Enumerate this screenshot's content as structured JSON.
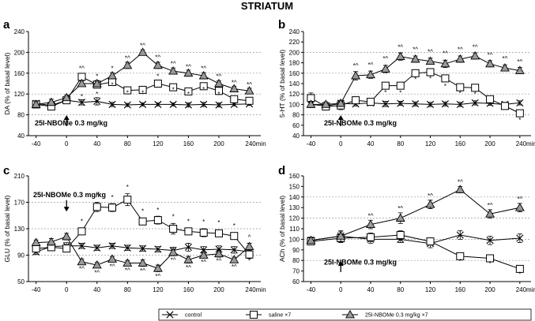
{
  "figure_title": "STRIATUM",
  "legend": [
    {
      "key": "control",
      "label": "control",
      "marker": "x-icon"
    },
    {
      "key": "saline",
      "label": "saline ×7",
      "marker": "square-icon"
    },
    {
      "key": "nbome",
      "label": "25I-NBOMe 0.3 mg/kg ×7",
      "marker": "triangle-icon"
    }
  ],
  "colors": {
    "grid": "#999999",
    "triangle_fill": "#9a9a9a",
    "square_fill": "#ffffff",
    "line": "#000000"
  },
  "chart_data": [
    {
      "panel": "a",
      "type": "line",
      "ylabel": "DA (% of basal level)",
      "x_unit": "240min",
      "annotation": "25I-NBOMe 0.3 mg/kg",
      "x_ticks": [
        -40,
        0,
        40,
        80,
        120,
        160,
        200,
        240
      ],
      "y_ticks": [
        40,
        80,
        120,
        160,
        200,
        240
      ],
      "ylim": [
        40,
        240
      ],
      "xlim": [
        -50,
        255
      ],
      "gridlines": [
        80,
        120,
        160,
        200
      ],
      "injection_x": 0,
      "x": [
        -40,
        -20,
        0,
        20,
        40,
        60,
        80,
        100,
        120,
        140,
        160,
        180,
        200,
        220,
        240
      ],
      "series": [
        {
          "key": "control",
          "values": [
            102,
            98,
            108,
            104,
            106,
            100,
            99,
            100,
            100,
            100,
            99,
            100,
            99,
            100,
            101
          ],
          "err": [
            5,
            5,
            6,
            5,
            7,
            4,
            3,
            3,
            3,
            3,
            4,
            4,
            4,
            3,
            3
          ]
        },
        {
          "key": "saline",
          "values": [
            100,
            96,
            108,
            153,
            138,
            143,
            127,
            128,
            140,
            133,
            125,
            135,
            126,
            110,
            107
          ],
          "err": [
            4,
            6,
            5,
            4,
            6,
            5,
            4,
            4,
            5,
            6,
            5,
            6,
            7,
            5,
            4
          ]
        },
        {
          "key": "nbome",
          "values": [
            100,
            104,
            113,
            140,
            140,
            155,
            175,
            200,
            175,
            164,
            160,
            155,
            140,
            130,
            126
          ],
          "err": [
            5,
            6,
            5,
            5,
            6,
            6,
            6,
            5,
            6,
            6,
            6,
            6,
            5,
            5,
            5
          ]
        }
      ],
      "significance": [
        {
          "x": 20,
          "y": 165,
          "text": "*^"
        },
        {
          "x": 20,
          "y": 111,
          "text": "*"
        },
        {
          "x": 40,
          "y": 150,
          "text": "*"
        },
        {
          "x": 40,
          "y": 116,
          "text": "*"
        },
        {
          "x": 60,
          "y": 165,
          "text": "*"
        },
        {
          "x": 60,
          "y": 133,
          "text": "*"
        },
        {
          "x": 80,
          "y": 185,
          "text": "*^"
        },
        {
          "x": 80,
          "y": 118,
          "text": "*"
        },
        {
          "x": 100,
          "y": 209,
          "text": "*^"
        },
        {
          "x": 100,
          "y": 118,
          "text": "*"
        },
        {
          "x": 120,
          "y": 186,
          "text": "*^"
        },
        {
          "x": 120,
          "y": 150,
          "text": "*"
        },
        {
          "x": 140,
          "y": 174,
          "text": "*^"
        },
        {
          "x": 140,
          "y": 124,
          "text": "*"
        },
        {
          "x": 160,
          "y": 168,
          "text": "*^"
        },
        {
          "x": 160,
          "y": 116,
          "text": "*"
        },
        {
          "x": 180,
          "y": 165,
          "text": "*^"
        },
        {
          "x": 180,
          "y": 125,
          "text": "*"
        },
        {
          "x": 200,
          "y": 150,
          "text": "*^"
        },
        {
          "x": 200,
          "y": 116,
          "text": "*"
        },
        {
          "x": 220,
          "y": 138,
          "text": "*^"
        },
        {
          "x": 240,
          "y": 134,
          "text": "*^"
        }
      ]
    },
    {
      "panel": "b",
      "type": "line",
      "ylabel": "5-HT (% of basal level)",
      "x_unit": "240min",
      "annotation": "25I-NBOMe 0.3 mg/kg",
      "x_ticks": [
        -40,
        0,
        40,
        80,
        120,
        160,
        200,
        240
      ],
      "y_ticks": [
        40,
        60,
        80,
        100,
        120,
        140,
        160,
        180,
        200,
        220,
        240
      ],
      "ylim": [
        40,
        240
      ],
      "xlim": [
        -50,
        255
      ],
      "gridlines": [
        80,
        120,
        160,
        200
      ],
      "injection_x": 0,
      "x": [
        -40,
        -20,
        0,
        20,
        40,
        60,
        80,
        100,
        120,
        140,
        160,
        180,
        200,
        220,
        240
      ],
      "series": [
        {
          "key": "control",
          "values": [
            100,
            97,
            102,
            101,
            103,
            101,
            102,
            101,
            100,
            101,
            100,
            103,
            102,
            100,
            103
          ],
          "err": [
            6,
            5,
            6,
            4,
            5,
            5,
            4,
            4,
            4,
            4,
            4,
            4,
            4,
            4,
            4
          ]
        },
        {
          "key": "saline",
          "values": [
            112,
            96,
            98,
            108,
            105,
            136,
            136,
            160,
            162,
            150,
            133,
            132,
            110,
            97,
            83
          ],
          "err": [
            10,
            6,
            8,
            6,
            5,
            5,
            5,
            5,
            5,
            6,
            5,
            5,
            5,
            4,
            4
          ]
        },
        {
          "key": "nbome",
          "values": [
            100,
            100,
            102,
            155,
            157,
            168,
            192,
            187,
            183,
            178,
            187,
            193,
            178,
            170,
            165
          ],
          "err": [
            6,
            5,
            6,
            8,
            7,
            7,
            7,
            6,
            6,
            7,
            6,
            6,
            6,
            6,
            6
          ]
        }
      ],
      "significance": [
        {
          "x": 20,
          "y": 170,
          "text": "*^"
        },
        {
          "x": 40,
          "y": 172,
          "text": "*^"
        },
        {
          "x": 60,
          "y": 184,
          "text": "*^"
        },
        {
          "x": 80,
          "y": 206,
          "text": "*^"
        },
        {
          "x": 100,
          "y": 201,
          "text": "*^"
        },
        {
          "x": 120,
          "y": 197,
          "text": "*^"
        },
        {
          "x": 140,
          "y": 194,
          "text": "*^"
        },
        {
          "x": 160,
          "y": 201,
          "text": "*^"
        },
        {
          "x": 180,
          "y": 206,
          "text": "*^"
        },
        {
          "x": 200,
          "y": 191,
          "text": "*^"
        },
        {
          "x": 220,
          "y": 184,
          "text": "*^"
        },
        {
          "x": 240,
          "y": 178,
          "text": "*^"
        },
        {
          "x": 60,
          "y": 119,
          "text": "*"
        },
        {
          "x": 80,
          "y": 118,
          "text": "*"
        },
        {
          "x": 100,
          "y": 144,
          "text": "*"
        },
        {
          "x": 120,
          "y": 145,
          "text": "*"
        },
        {
          "x": 140,
          "y": 131,
          "text": "*"
        },
        {
          "x": 160,
          "y": 117,
          "text": "*"
        },
        {
          "x": 180,
          "y": 116,
          "text": "*"
        },
        {
          "x": 240,
          "y": 66,
          "text": "*"
        }
      ]
    },
    {
      "panel": "c",
      "type": "line",
      "ylabel": "GLU (% of basal level)",
      "x_unit": "240min",
      "annotation": "25I-NBOMe 0.3 mg/kg",
      "x_ticks": [
        -40,
        0,
        40,
        80,
        120,
        160,
        200,
        240
      ],
      "y_ticks": [
        50,
        90,
        130,
        170,
        210
      ],
      "ylim": [
        50,
        210
      ],
      "xlim": [
        -50,
        255
      ],
      "gridlines": [
        90,
        130,
        170
      ],
      "injection_x": 0,
      "x": [
        -40,
        -20,
        0,
        20,
        40,
        60,
        80,
        100,
        120,
        140,
        160,
        180,
        200,
        220,
        240
      ],
      "series": [
        {
          "key": "control",
          "values": [
            95,
            103,
            104,
            104,
            101,
            104,
            101,
            100,
            99,
            97,
            102,
            98,
            99,
            98,
            95
          ],
          "err": [
            4,
            4,
            5,
            4,
            4,
            4,
            4,
            4,
            4,
            5,
            6,
            5,
            5,
            5,
            5
          ]
        },
        {
          "key": "saline",
          "values": [
            100,
            102,
            100,
            126,
            163,
            162,
            174,
            141,
            143,
            130,
            126,
            124,
            123,
            119,
            91
          ],
          "err": [
            4,
            4,
            5,
            5,
            7,
            6,
            9,
            5,
            6,
            8,
            5,
            6,
            5,
            5,
            6
          ]
        },
        {
          "key": "nbome",
          "values": [
            109,
            110,
            118,
            80,
            75,
            84,
            78,
            78,
            70,
            94,
            83,
            90,
            92,
            83,
            103
          ],
          "err": [
            4,
            5,
            5,
            4,
            4,
            4,
            4,
            5,
            5,
            5,
            5,
            4,
            5,
            4,
            5
          ]
        }
      ],
      "significance": [
        {
          "x": 20,
          "y": 138,
          "text": "*"
        },
        {
          "x": 40,
          "y": 177,
          "text": "*"
        },
        {
          "x": 60,
          "y": 174,
          "text": "*"
        },
        {
          "x": 80,
          "y": 190,
          "text": "*"
        },
        {
          "x": 100,
          "y": 153,
          "text": "*"
        },
        {
          "x": 120,
          "y": 155,
          "text": "*"
        },
        {
          "x": 140,
          "y": 145,
          "text": "*"
        },
        {
          "x": 160,
          "y": 138,
          "text": "*"
        },
        {
          "x": 180,
          "y": 137,
          "text": "*"
        },
        {
          "x": 200,
          "y": 136,
          "text": "*"
        },
        {
          "x": 220,
          "y": 131,
          "text": "*"
        },
        {
          "x": 240,
          "y": 114,
          "text": "^"
        },
        {
          "x": 20,
          "y": 66,
          "text": "*^"
        },
        {
          "x": 40,
          "y": 60,
          "text": "*^"
        },
        {
          "x": 60,
          "y": 70,
          "text": "*^"
        },
        {
          "x": 80,
          "y": 64,
          "text": "*^"
        },
        {
          "x": 100,
          "y": 63,
          "text": "*^"
        },
        {
          "x": 120,
          "y": 55,
          "text": "*^"
        },
        {
          "x": 140,
          "y": 79,
          "text": "*^"
        },
        {
          "x": 160,
          "y": 68,
          "text": "*^"
        },
        {
          "x": 180,
          "y": 76,
          "text": "*^"
        },
        {
          "x": 200,
          "y": 78,
          "text": "*^"
        },
        {
          "x": 220,
          "y": 69,
          "text": "*^"
        },
        {
          "x": 240,
          "y": 78,
          "text": "*"
        }
      ]
    },
    {
      "panel": "d",
      "type": "line",
      "ylabel": "ACh (% of basal level)",
      "x_unit": "240min",
      "annotation": "25I-NBOMe 0.3 mg/kg",
      "x_ticks": [
        -40,
        0,
        40,
        80,
        120,
        160,
        200,
        240
      ],
      "y_ticks": [
        60,
        70,
        80,
        90,
        100,
        110,
        120,
        130,
        140,
        150,
        160
      ],
      "ylim": [
        60,
        160
      ],
      "xlim": [
        -50,
        255
      ],
      "gridlines": [
        80,
        100,
        120,
        140
      ],
      "injection_x": 0,
      "x": [
        -40,
        0,
        40,
        80,
        120,
        160,
        200,
        240
      ],
      "series": [
        {
          "key": "control",
          "values": [
            99,
            103,
            100,
            100,
            96,
            104,
            99,
            101
          ],
          "err": [
            3,
            4,
            4,
            3,
            4,
            4,
            4,
            4
          ]
        },
        {
          "key": "saline",
          "values": [
            98,
            101,
            102,
            104,
            98,
            84,
            82,
            72
          ],
          "err": [
            3,
            4,
            4,
            4,
            3,
            3,
            3,
            3
          ]
        },
        {
          "key": "nbome",
          "values": [
            99,
            103,
            114,
            120,
            133,
            147,
            124,
            130
          ],
          "err": [
            3,
            5,
            4,
            5,
            4,
            3,
            4,
            4
          ]
        }
      ],
      "significance": [
        {
          "x": 40,
          "y": 120,
          "text": "*^"
        },
        {
          "x": 80,
          "y": 127,
          "text": "*^"
        },
        {
          "x": 120,
          "y": 139,
          "text": "*^"
        },
        {
          "x": 160,
          "y": 152,
          "text": "*^"
        },
        {
          "x": 200,
          "y": 130,
          "text": "*^"
        },
        {
          "x": 240,
          "y": 136,
          "text": "*^"
        },
        {
          "x": 160,
          "y": 77,
          "text": "*"
        },
        {
          "x": 200,
          "y": 75,
          "text": "*"
        },
        {
          "x": 240,
          "y": 65,
          "text": "*"
        }
      ]
    }
  ]
}
